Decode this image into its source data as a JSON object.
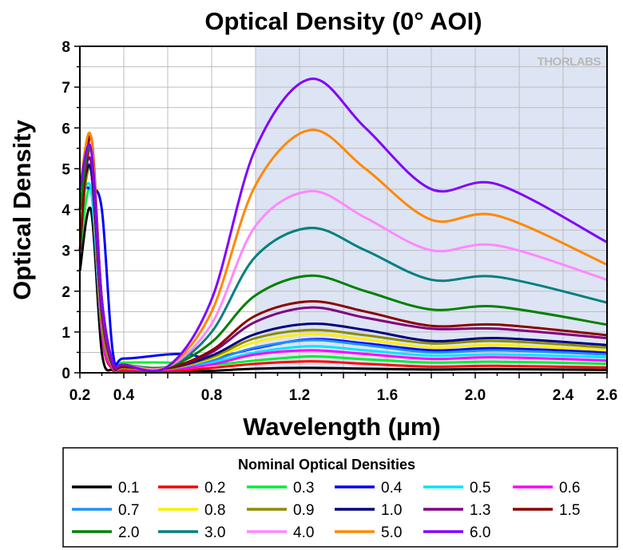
{
  "logo_text": "THORLABS",
  "chart_data": {
    "type": "line",
    "title": "Optical Density (0° AOI)",
    "xlabel": "Wavelength (µm)",
    "ylabel": "Optical Density",
    "xlim": [
      0.2,
      2.6
    ],
    "ylim": [
      0,
      8
    ],
    "x_ticks": [
      0.2,
      0.4,
      0.8,
      1.2,
      1.6,
      2.0,
      2.4,
      2.6
    ],
    "x_tick_labels": [
      "0.2",
      "0.4",
      "0.8",
      "1.2",
      "1.6",
      "2.0",
      "2.4",
      "2.6"
    ],
    "y_ticks": [
      0,
      1,
      2,
      3,
      4,
      5,
      6,
      7,
      8
    ],
    "y_tick_labels": [
      "0",
      "1",
      "2",
      "3",
      "4",
      "5",
      "6",
      "7",
      "8"
    ],
    "grid": true,
    "shaded_region_x": [
      1.0,
      2.6
    ],
    "shaded_color": "#dde4f3",
    "legend": {
      "title": "Nominal Optical Densities",
      "placement": "bottom"
    },
    "series": [
      {
        "name": "0.1",
        "color": "#000000",
        "x": [
          0.2,
          0.25,
          0.3,
          0.35,
          0.4,
          0.6,
          0.8,
          1.0,
          1.25,
          1.5,
          1.8,
          2.1,
          2.6
        ],
        "y": [
          2.5,
          4.0,
          0.5,
          0.06,
          0.03,
          0.02,
          0.05,
          0.1,
          0.12,
          0.1,
          0.08,
          0.09,
          0.07
        ]
      },
      {
        "name": "0.2",
        "color": "#ff0000",
        "x": [
          0.2,
          0.25,
          0.3,
          0.35,
          0.4,
          0.6,
          0.8,
          1.0,
          1.25,
          1.5,
          1.8,
          2.1,
          2.6
        ],
        "y": [
          3.0,
          5.5,
          1.0,
          0.08,
          0.05,
          0.03,
          0.12,
          0.22,
          0.28,
          0.22,
          0.15,
          0.17,
          0.13
        ]
      },
      {
        "name": "0.3",
        "color": "#00ee33",
        "x": [
          0.2,
          0.25,
          0.3,
          0.35,
          0.4,
          0.6,
          0.8,
          1.0,
          1.25,
          1.5,
          1.8,
          2.1,
          2.6
        ],
        "y": [
          3.0,
          4.5,
          1.0,
          0.25,
          0.25,
          0.25,
          0.2,
          0.3,
          0.4,
          0.33,
          0.25,
          0.27,
          0.22
        ]
      },
      {
        "name": "0.4",
        "color": "#0000ff",
        "x": [
          0.2,
          0.25,
          0.3,
          0.35,
          0.4,
          0.6,
          0.7,
          0.8,
          1.0,
          1.25,
          1.5,
          1.8,
          2.1,
          2.6
        ],
        "y": [
          4.5,
          4.5,
          4.0,
          0.5,
          0.35,
          0.45,
          0.45,
          0.35,
          0.6,
          0.82,
          0.72,
          0.55,
          0.6,
          0.5
        ]
      },
      {
        "name": "0.5",
        "color": "#00e5ff",
        "x": [
          0.2,
          0.25,
          0.3,
          0.35,
          0.4,
          0.6,
          0.8,
          1.0,
          1.25,
          1.5,
          1.8,
          2.1,
          2.6
        ],
        "y": [
          4.0,
          4.5,
          1.0,
          0.12,
          0.1,
          0.08,
          0.25,
          0.5,
          0.65,
          0.55,
          0.42,
          0.45,
          0.38
        ]
      },
      {
        "name": "0.6",
        "color": "#ff00ff",
        "x": [
          0.2,
          0.25,
          0.3,
          0.35,
          0.4,
          0.6,
          0.8,
          1.0,
          1.25,
          1.5,
          1.8,
          2.1,
          2.6
        ],
        "y": [
          4.0,
          5.0,
          1.0,
          0.12,
          0.1,
          0.08,
          0.2,
          0.45,
          0.55,
          0.46,
          0.34,
          0.38,
          0.3
        ]
      },
      {
        "name": "0.7",
        "color": "#1e90ff",
        "x": [
          0.2,
          0.25,
          0.3,
          0.35,
          0.4,
          0.6,
          0.8,
          1.0,
          1.25,
          1.5,
          1.8,
          2.1,
          2.6
        ],
        "y": [
          4.0,
          5.0,
          1.2,
          0.15,
          0.12,
          0.1,
          0.3,
          0.62,
          0.8,
          0.68,
          0.5,
          0.55,
          0.45
        ]
      },
      {
        "name": "0.8",
        "color": "#ffee00",
        "x": [
          0.2,
          0.25,
          0.3,
          0.35,
          0.4,
          0.6,
          0.8,
          1.0,
          1.25,
          1.5,
          1.8,
          2.1,
          2.6
        ],
        "y": [
          3.5,
          5.0,
          1.2,
          0.15,
          0.12,
          0.1,
          0.35,
          0.75,
          0.95,
          0.82,
          0.62,
          0.68,
          0.55
        ]
      },
      {
        "name": "0.9",
        "color": "#8b8b00",
        "x": [
          0.2,
          0.25,
          0.3,
          0.35,
          0.4,
          0.6,
          0.8,
          1.0,
          1.25,
          1.5,
          1.8,
          2.1,
          2.6
        ],
        "y": [
          3.5,
          5.0,
          1.2,
          0.15,
          0.12,
          0.1,
          0.38,
          0.85,
          1.05,
          0.92,
          0.72,
          0.78,
          0.62
        ]
      },
      {
        "name": "1.0",
        "color": "#000080",
        "x": [
          0.2,
          0.25,
          0.3,
          0.35,
          0.4,
          0.6,
          0.8,
          1.0,
          1.25,
          1.5,
          1.8,
          2.1,
          2.6
        ],
        "y": [
          4.0,
          5.0,
          1.5,
          0.18,
          0.15,
          0.12,
          0.42,
          0.95,
          1.2,
          1.05,
          0.78,
          0.85,
          0.68
        ]
      },
      {
        "name": "1.3",
        "color": "#800080",
        "x": [
          0.2,
          0.25,
          0.3,
          0.35,
          0.4,
          0.6,
          0.8,
          1.0,
          1.25,
          1.5,
          1.8,
          2.1,
          2.6
        ],
        "y": [
          4.0,
          5.2,
          1.5,
          0.2,
          0.15,
          0.12,
          0.5,
          1.25,
          1.6,
          1.35,
          1.08,
          1.08,
          0.85
        ]
      },
      {
        "name": "1.5",
        "color": "#8b0000",
        "x": [
          0.2,
          0.25,
          0.3,
          0.35,
          0.4,
          0.6,
          0.8,
          1.0,
          1.25,
          1.5,
          1.8,
          2.1,
          2.6
        ],
        "y": [
          3.0,
          5.8,
          1.8,
          0.2,
          0.15,
          0.12,
          0.55,
          1.4,
          1.75,
          1.5,
          1.15,
          1.18,
          0.92
        ]
      },
      {
        "name": "2.0",
        "color": "#008000",
        "x": [
          0.2,
          0.25,
          0.3,
          0.35,
          0.4,
          0.6,
          0.8,
          1.0,
          1.25,
          1.5,
          1.8,
          2.1,
          2.6
        ],
        "y": [
          4.0,
          5.5,
          1.8,
          0.25,
          0.2,
          0.15,
          0.75,
          1.9,
          2.38,
          2.0,
          1.55,
          1.62,
          1.18
        ]
      },
      {
        "name": "3.0",
        "color": "#008080",
        "x": [
          0.2,
          0.25,
          0.3,
          0.35,
          0.4,
          0.6,
          0.8,
          1.0,
          1.25,
          1.5,
          1.8,
          2.1,
          2.6
        ],
        "y": [
          4.5,
          5.5,
          1.8,
          0.25,
          0.2,
          0.15,
          1.0,
          2.85,
          3.55,
          3.0,
          2.28,
          2.35,
          1.72
        ]
      },
      {
        "name": "4.0",
        "color": "#ff88ff",
        "x": [
          0.2,
          0.25,
          0.3,
          0.35,
          0.4,
          0.6,
          0.8,
          1.0,
          1.25,
          1.5,
          1.8,
          2.1,
          2.6
        ],
        "y": [
          4.5,
          5.5,
          1.8,
          0.25,
          0.2,
          0.15,
          1.2,
          3.6,
          4.45,
          3.8,
          3.0,
          3.12,
          2.28
        ]
      },
      {
        "name": "5.0",
        "color": "#ff8800",
        "x": [
          0.2,
          0.25,
          0.3,
          0.35,
          0.4,
          0.6,
          0.8,
          1.0,
          1.25,
          1.5,
          1.8,
          2.1,
          2.6
        ],
        "y": [
          4.5,
          5.8,
          1.8,
          0.25,
          0.2,
          0.15,
          1.5,
          4.6,
          5.95,
          5.0,
          3.75,
          3.85,
          2.65
        ]
      },
      {
        "name": "6.0",
        "color": "#8000ff",
        "x": [
          0.2,
          0.25,
          0.3,
          0.35,
          0.4,
          0.6,
          0.8,
          1.0,
          1.25,
          1.5,
          1.8,
          2.1,
          2.6
        ],
        "y": [
          4.5,
          5.5,
          1.8,
          0.25,
          0.2,
          0.15,
          1.8,
          5.5,
          7.2,
          6.0,
          4.5,
          4.62,
          3.2
        ]
      }
    ]
  }
}
